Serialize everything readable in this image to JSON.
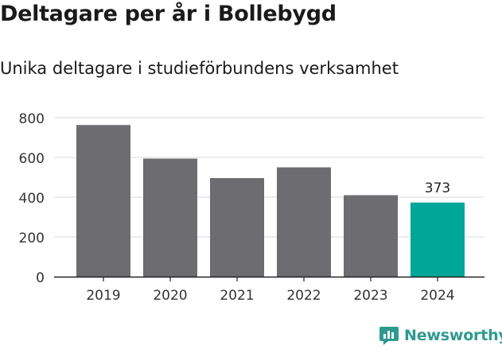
{
  "title": "Deltagare per år i Bollebygd",
  "subtitle": "Unika deltagare i studieförbundens verksamhet",
  "brand": {
    "name": "Newsworthy",
    "color": "#2e9a8f"
  },
  "colors": {
    "bar": "#6d6c71",
    "highlight": "#00a698",
    "grid": "#d9d9d9",
    "axis": "#222222"
  },
  "chart_data": {
    "type": "bar",
    "categories": [
      "2019",
      "2020",
      "2021",
      "2022",
      "2023",
      "2024"
    ],
    "values": [
      763,
      594,
      496,
      550,
      410,
      373
    ],
    "highlight_index": 5,
    "data_labels": [
      {
        "index": 5,
        "text": "373"
      }
    ],
    "yticks": [
      0,
      200,
      400,
      600,
      800
    ],
    "ylim": [
      0,
      800
    ],
    "grid": true,
    "title": "Deltagare per år i Bollebygd",
    "subtitle": "Unika deltagare i studieförbundens verksamhet",
    "xlabel": "",
    "ylabel": ""
  }
}
